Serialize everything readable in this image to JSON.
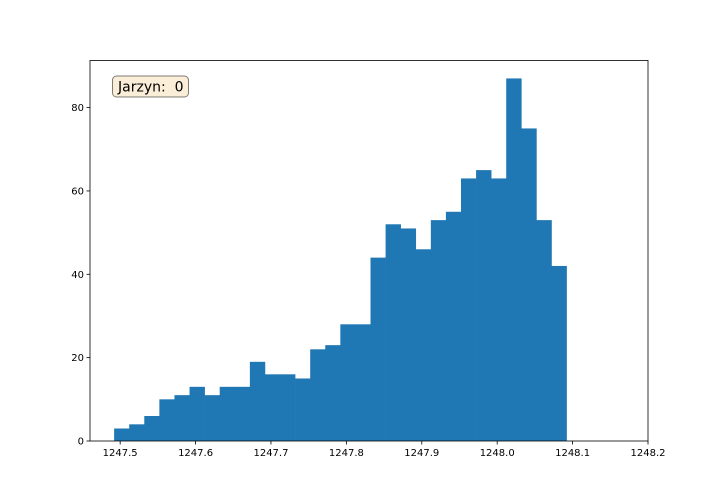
{
  "chart_data": {
    "type": "bar",
    "title": "",
    "xlabel": "",
    "ylabel": "",
    "annotation": "Jarzyn:  0",
    "bar_color": "#1f77b4",
    "annotation_facecolor": "#f5deb3",
    "bins_start": 1247.492,
    "bin_width": 0.02,
    "values": [
      3,
      4,
      6,
      10,
      11,
      13,
      11,
      13,
      13,
      19,
      16,
      16,
      15,
      22,
      23,
      28,
      28,
      44,
      52,
      51,
      46,
      53,
      55,
      63,
      65,
      63,
      87,
      75,
      53,
      42
    ],
    "xlim": [
      1247.46,
      1248.2
    ],
    "ylim": [
      0,
      91.3
    ],
    "xticks": [
      1247.5,
      1247.6,
      1247.7,
      1247.8,
      1247.9,
      1248.0,
      1248.1,
      1248.2
    ],
    "xtick_labels": [
      "1247.5",
      "1247.6",
      "1247.7",
      "1247.8",
      "1247.9",
      "1248.0",
      "1248.1",
      "1248.2"
    ],
    "yticks": [
      0,
      20,
      40,
      60,
      80
    ],
    "ytick_labels": [
      "0",
      "20",
      "40",
      "60",
      "80"
    ],
    "grid": false,
    "legend": "none"
  }
}
